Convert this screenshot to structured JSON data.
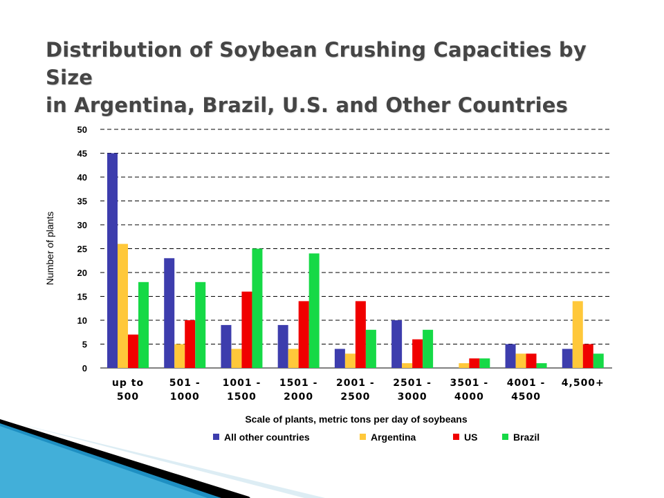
{
  "slide": {
    "title_line1": "Distribution of Soybean Crushing Capacities by Size",
    "title_line2": "in Argentina, Brazil, U.S. and Other Countries"
  },
  "chart_data": {
    "type": "bar",
    "categories": [
      [
        "up to",
        "500"
      ],
      [
        "501 -",
        "1000"
      ],
      [
        "1001 -",
        "1500"
      ],
      [
        "1501 -",
        "2000"
      ],
      [
        "2001 -",
        "2500"
      ],
      [
        "2501 -",
        "3000"
      ],
      [
        "3501 -",
        "4000"
      ],
      [
        "4001 -",
        "4500"
      ],
      [
        "4,500+",
        ""
      ]
    ],
    "series": [
      {
        "name": "All other countries",
        "color": "#3D3DAD",
        "values": [
          45,
          23,
          9,
          9,
          4,
          10,
          0,
          5,
          4
        ]
      },
      {
        "name": "Argentina",
        "color": "#FFC83A",
        "values": [
          26,
          5,
          4,
          4,
          3,
          1,
          1,
          3,
          14
        ]
      },
      {
        "name": "US",
        "color": "#F00000",
        "values": [
          7,
          10,
          16,
          14,
          14,
          6,
          2,
          3,
          5
        ]
      },
      {
        "name": "Brazil",
        "color": "#16D946",
        "values": [
          18,
          18,
          25,
          24,
          8,
          8,
          2,
          1,
          3
        ]
      }
    ],
    "ylabel": "Number of plants",
    "xlabel": "Scale of plants, metric tons per day of soybeans",
    "ylim": [
      0,
      50
    ],
    "yticks": [
      0,
      5,
      10,
      15,
      20,
      25,
      30,
      35,
      40,
      45,
      50
    ],
    "grid": "dashed horizontal",
    "legend": "bottom"
  }
}
